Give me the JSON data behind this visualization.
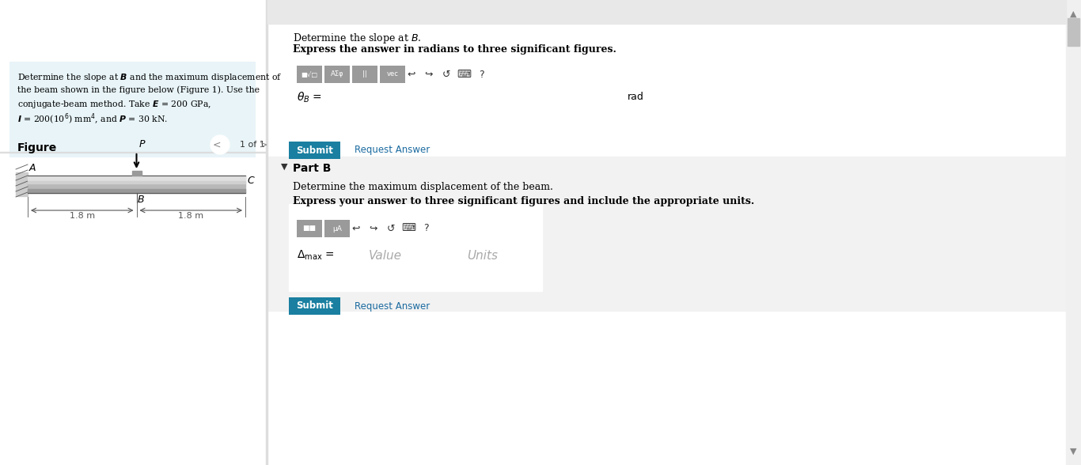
{
  "bg_color": "#ffffff",
  "left_panel_bg": "#e8f4f8",
  "right_panel_bg": "#ffffff",
  "gray_panel_bg": "#f0f0f0",
  "teal_btn_color": "#1a7fa0",
  "blue_link_color": "#1a6aa0",
  "border_color": "#cccccc",
  "input_border_color": "#2196a0",
  "problem_text": "Determine the slope at $B$ and the maximum displacement of\nthe beam shown in the figure below (Figure 1). Use the\nconjugate-beam method. Take $E = 200$ GPa,\n$I = 200(10^6)$ mm$^4$, and $P = 30$ kN.",
  "part_a_title": "Determine the slope at $B$.",
  "part_a_subtitle": "Express the answer in radians to three significant figures.",
  "theta_label": "$\\theta_B$ =",
  "theta_unit": "rad",
  "part_b_header": "Part B",
  "part_b_title": "Determine the maximum displacement of the beam.",
  "part_b_subtitle": "Express your answer to three significant figures and include the appropriate units.",
  "delta_label": "$\\Delta_{\\mathrm{max}}$ =",
  "value_placeholder": "Value",
  "units_placeholder": "Units",
  "submit_text": "Submit",
  "request_text": "Request Answer",
  "figure_label": "Figure",
  "nav_text": "1 of 1",
  "dim_label_1": "1.8 m",
  "dim_label_2": "1.8 m",
  "A_label": "A",
  "B_label": "B",
  "C_label": "C",
  "P_label": "P",
  "scrollbar_color": "#c0c0c0",
  "toolbar_btn_color": "#888888"
}
